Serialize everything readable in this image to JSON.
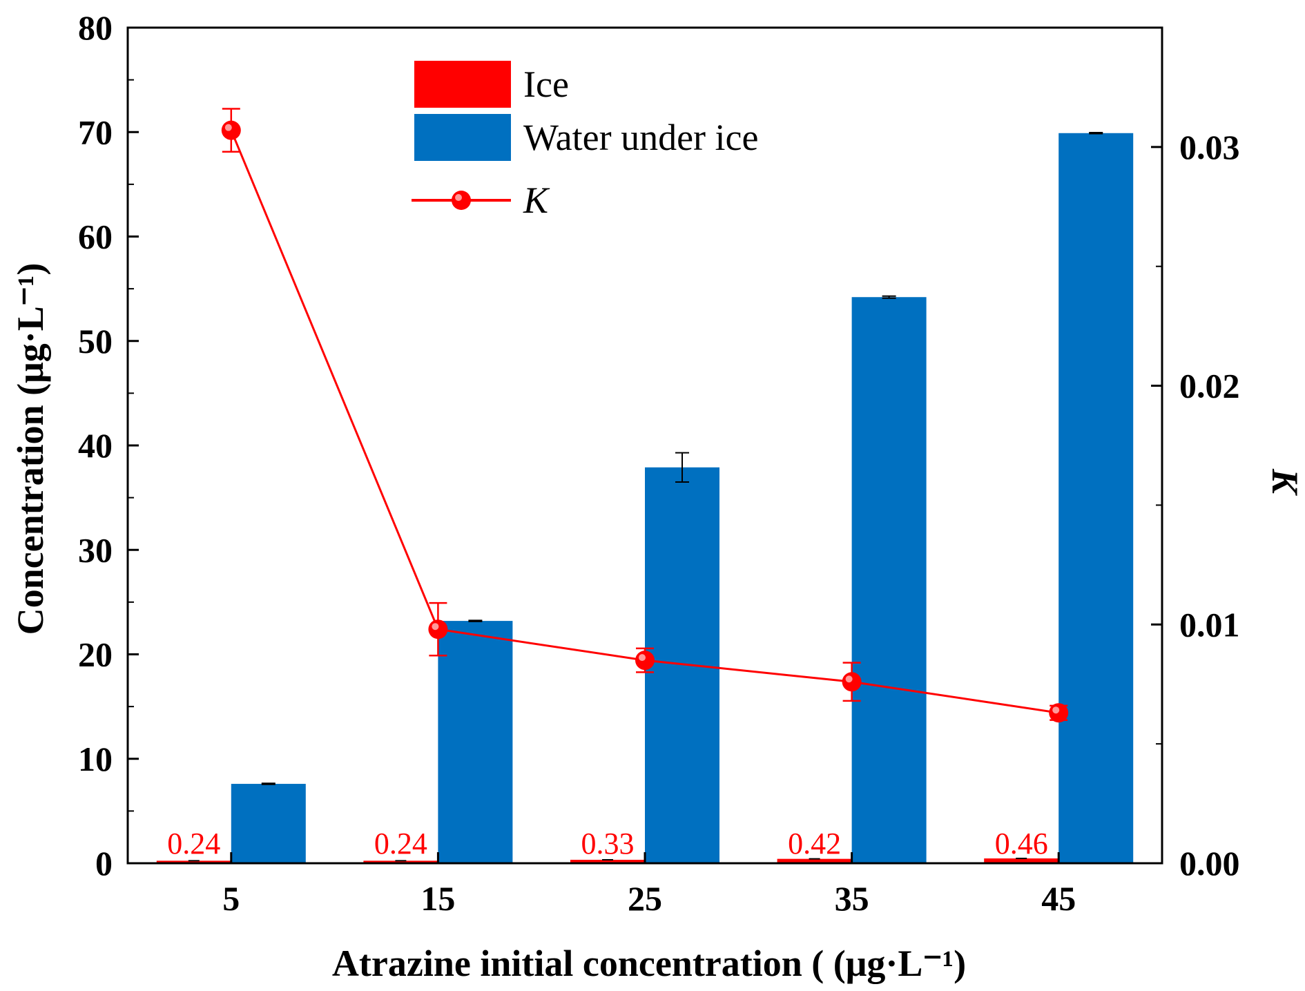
{
  "chart_data": {
    "type": "bar",
    "title": "",
    "xlabel": "Atrazine initial concentration ( (μg·L⁻¹)",
    "ylabel": "Concentration (μg·L⁻¹)",
    "ylabel_right": "K",
    "categories": [
      "5",
      "15",
      "25",
      "35",
      "45"
    ],
    "ylim": [
      0,
      80
    ],
    "yticks": [
      0,
      10,
      20,
      30,
      40,
      50,
      60,
      70,
      80
    ],
    "ylim_right": [
      0,
      0.035
    ],
    "yticks_right": [
      "0.00",
      "0.01",
      "0.02",
      "0.03"
    ],
    "series": [
      {
        "name": "Ice",
        "type": "bar",
        "axis": "left",
        "color": "#ff0000",
        "values": [
          0.24,
          0.24,
          0.33,
          0.42,
          0.46
        ],
        "data_labels": [
          "0.24",
          "0.24",
          "0.33",
          "0.42",
          "0.46"
        ]
      },
      {
        "name": "Water under ice",
        "type": "bar",
        "axis": "left",
        "color": "#0070c0",
        "values": [
          7.6,
          23.2,
          37.9,
          54.2,
          69.9
        ],
        "errors": [
          0.05,
          0.05,
          1.4,
          0.1,
          0.05
        ]
      },
      {
        "name": "K",
        "type": "line",
        "axis": "right",
        "color": "#ff0000",
        "values": [
          0.0307,
          0.0098,
          0.0085,
          0.0076,
          0.0063
        ],
        "errors": [
          0.0009,
          0.0011,
          0.0005,
          0.0008,
          0.0003
        ]
      }
    ],
    "legend": {
      "position": "top-center",
      "entries": [
        "Ice",
        "Water under ice",
        "K"
      ]
    }
  }
}
